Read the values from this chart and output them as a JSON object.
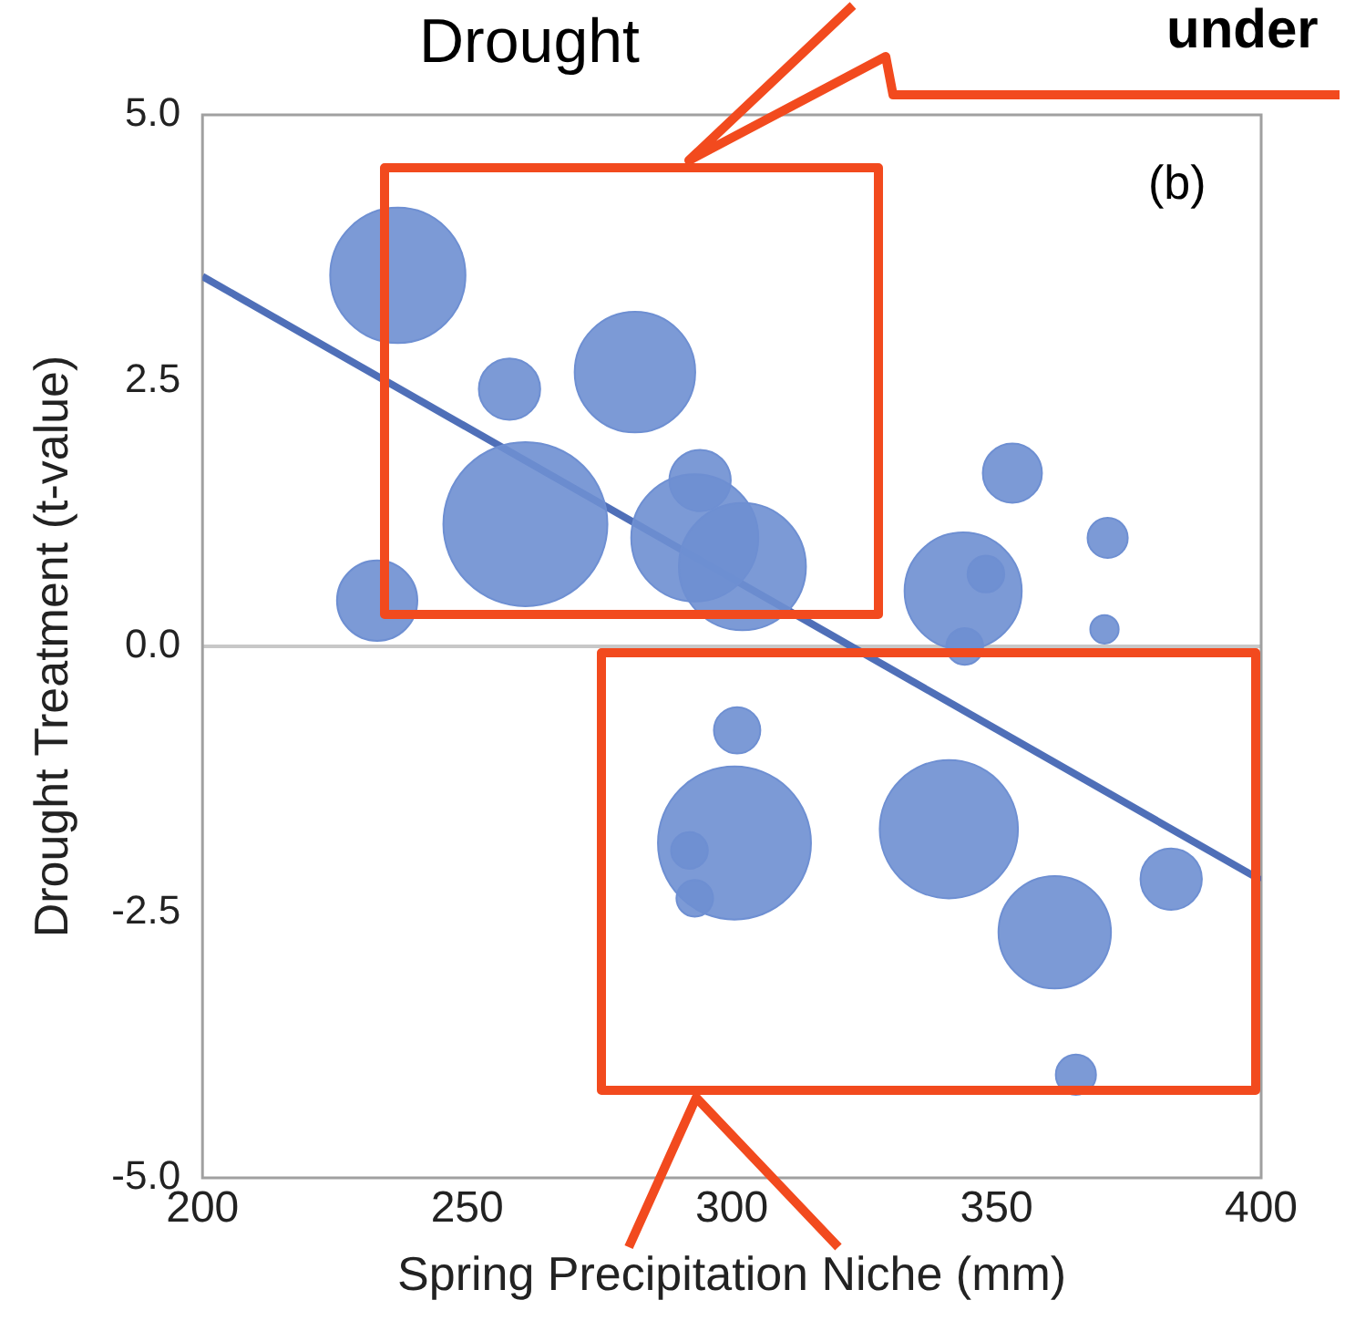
{
  "chart_data": {
    "type": "bubble",
    "xlabel": "Spring Precipitation Niche (mm)",
    "ylabel": "Drought Treatment (t-value)",
    "annotations": [
      "Drought",
      "under",
      "(b)"
    ],
    "xlim": [
      200,
      400
    ],
    "xticks": [
      200,
      250,
      300,
      350,
      400
    ],
    "ylim": [
      -5,
      5
    ],
    "yticks": [
      {
        "value": 5,
        "label": "5.0"
      },
      {
        "value": 2.5,
        "label": "2.5"
      },
      {
        "value": 0,
        "label": "0.0"
      },
      {
        "value": -2.5,
        "label": "-2.5"
      },
      {
        "value": -5,
        "label": "-5.0"
      }
    ],
    "grid": false,
    "legend": false,
    "ref_lines": [
      {
        "axis": "y",
        "value": 0,
        "color": "#c8c8c8"
      }
    ],
    "series": [
      {
        "color": "#6e8fd2",
        "x": [
          236.9,
          258,
          281.7,
          261,
          294,
          293,
          302,
          233,
          343.7,
          353,
          348,
          371,
          344,
          370.4,
          301,
          300.5,
          292,
          293,
          341,
          361,
          383,
          365
        ],
        "values": [
          3.49,
          2.42,
          2.58,
          1.15,
          1.56,
          1.02,
          0.75,
          0.43,
          0.52,
          1.63,
          0.68,
          1.02,
          0.0,
          0.16,
          -0.79,
          -1.85,
          -1.92,
          -2.37,
          -1.72,
          -2.69,
          -2.19,
          -4.03
        ],
        "sizes": [
          0.68,
          0.14,
          0.54,
          1,
          0.14,
          0.6,
          0.6,
          0.24,
          0.51,
          0.13,
          0.05,
          0.06,
          0.05,
          0.03,
          0.08,
          0.87,
          0.05,
          0.05,
          0.71,
          0.47,
          0.14,
          0.06
        ]
      },
      {
        "type": "line",
        "color": "#4f6fb8",
        "x": [
          200,
          400
        ],
        "values": [
          3.48,
          -2.2
        ]
      }
    ]
  }
}
